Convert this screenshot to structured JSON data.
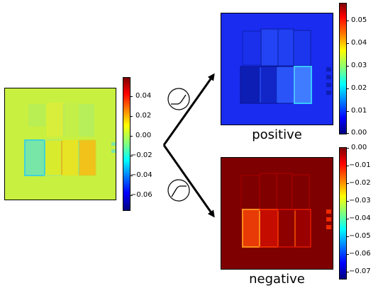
{
  "panels": {
    "input": {
      "colorbar_ticks": [
        "0.04",
        "0.02",
        "0.00",
        "−0.02",
        "−0.04",
        "−0.06"
      ],
      "colormap": "jet",
      "background_color": "#c8f040"
    },
    "positive": {
      "caption": "positive",
      "colorbar_ticks": [
        "0.05",
        "0.04",
        "0.03",
        "0.02",
        "0.01",
        "0.00"
      ],
      "colormap": "jet",
      "background_color": "#1a2cf0"
    },
    "negative": {
      "caption": "negative",
      "colorbar_ticks": [
        "0.00",
        "−0.01",
        "−0.02",
        "−0.03",
        "−0.04",
        "−0.05",
        "−0.06",
        "−0.07"
      ],
      "colormap": "jet",
      "background_color": "#7e0000"
    }
  },
  "icons": {
    "upper": "relu-curve-icon",
    "lower": "inverted-relu-curve-icon"
  },
  "colors": {
    "arrow": "#000000",
    "jet_stops": [
      "#00007f",
      "#0000ff",
      "#007fff",
      "#00ffff",
      "#7fff7f",
      "#ffff00",
      "#ff7f00",
      "#ff0000",
      "#7f0000"
    ]
  }
}
